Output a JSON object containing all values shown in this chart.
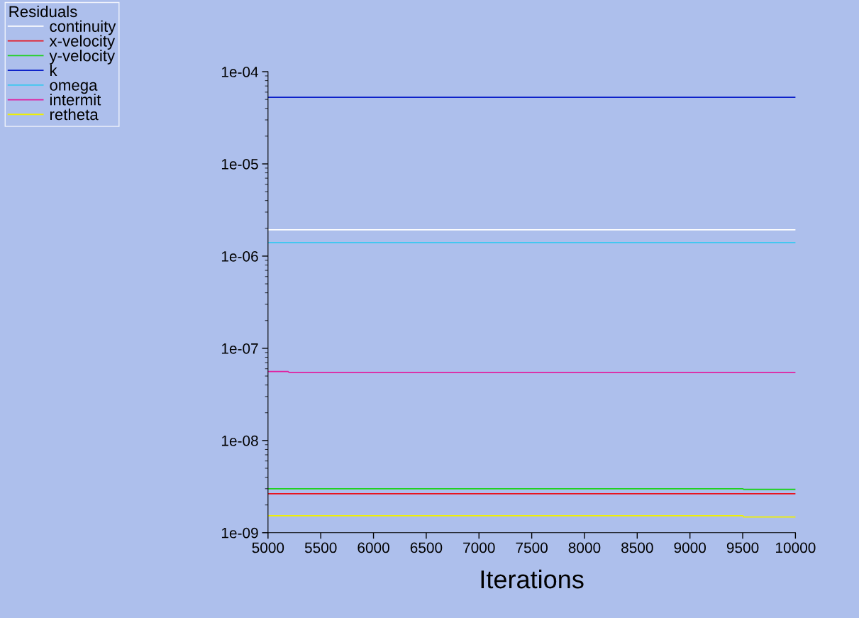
{
  "chart_data": {
    "type": "line",
    "xlabel": "Iterations",
    "legend_title": "Residuals",
    "legend": "top left",
    "log": "y",
    "grid": false,
    "marker": "none",
    "line_style": "solid",
    "xlim": [
      5000,
      10000
    ],
    "xticks": [
      5000,
      5500,
      6000,
      6500,
      7000,
      7500,
      8000,
      8500,
      9000,
      9500,
      10000
    ],
    "ylim": [
      1e-09,
      0.0001
    ],
    "yticks": [
      {
        "value": 1e-09,
        "label": "1e-09"
      },
      {
        "value": 1e-08,
        "label": "1e-08"
      },
      {
        "value": 1e-07,
        "label": "1e-07"
      },
      {
        "value": 1e-06,
        "label": "1e-06"
      },
      {
        "value": 1e-05,
        "label": "1e-05"
      },
      {
        "value": 0.0001,
        "label": "1e-04"
      }
    ],
    "series": [
      {
        "name": "continuity",
        "color": "#ffffff",
        "x": [
          5000,
          10000
        ],
        "values": [
          1.93e-06,
          1.93e-06
        ]
      },
      {
        "name": "x-velocity",
        "color": "#e8141e",
        "x": [
          5000,
          10000
        ],
        "values": [
          2.65e-09,
          2.65e-09
        ]
      },
      {
        "name": "y-velocity",
        "color": "#1ed21e",
        "x": [
          5000,
          9500,
          9510,
          10000
        ],
        "values": [
          3e-09,
          3e-09,
          2.95e-09,
          2.95e-09
        ]
      },
      {
        "name": "k",
        "color": "#0a1ec8",
        "x": [
          5000,
          10000
        ],
        "values": [
          5.28e-05,
          5.28e-05
        ]
      },
      {
        "name": "omega",
        "color": "#3cc8f0",
        "x": [
          5000,
          10000
        ],
        "values": [
          1.4e-06,
          1.4e-06
        ]
      },
      {
        "name": "intermit",
        "color": "#e020a0",
        "x": [
          5000,
          5190,
          5200,
          10000
        ],
        "values": [
          5.6e-08,
          5.6e-08,
          5.47e-08,
          5.47e-08
        ]
      },
      {
        "name": "retheta",
        "color": "#f0f000",
        "x": [
          5000,
          9500,
          9510,
          10000
        ],
        "values": [
          1.53e-09,
          1.53e-09,
          1.48e-09,
          1.48e-09
        ]
      }
    ]
  }
}
